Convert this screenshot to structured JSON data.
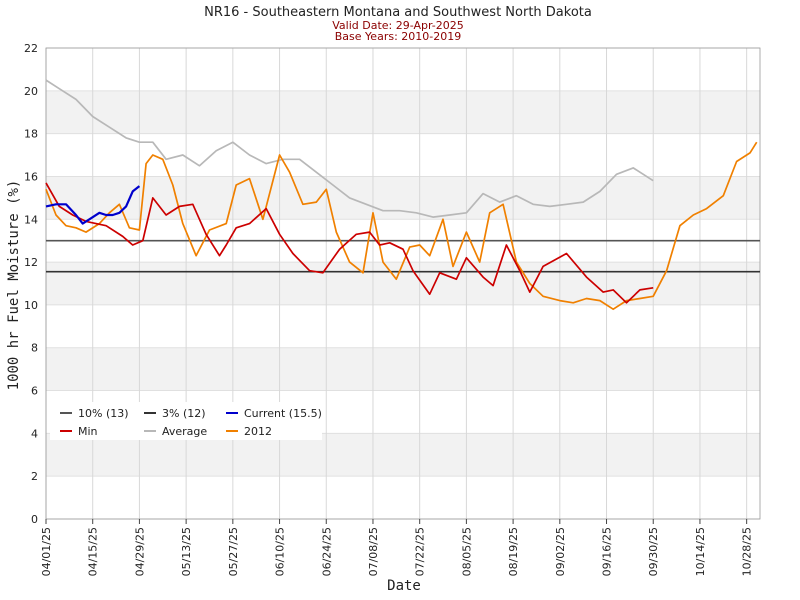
{
  "chart_data": {
    "type": "line",
    "title": "NR16 - Southeastern Montana and Southwest North Dakota",
    "subtitle_lines": [
      "Valid Date: 29-Apr-2025",
      "Base Years: 2010-2019"
    ],
    "xlabel": "Date",
    "ylabel": "1000 hr Fuel Moisture (%)",
    "x_start": "2025-04-01",
    "x_end": "2025-11-01",
    "ylim": [
      0,
      22
    ],
    "yticks": [
      0,
      2,
      4,
      6,
      8,
      10,
      12,
      14,
      16,
      18,
      20,
      22
    ],
    "xticks": [
      "04/01/25",
      "04/15/25",
      "04/29/25",
      "05/13/25",
      "05/27/25",
      "06/10/25",
      "06/24/25",
      "07/08/25",
      "07/22/25",
      "08/05/25",
      "08/19/25",
      "09/02/25",
      "09/16/25",
      "09/30/25",
      "10/14/25",
      "10/28/25"
    ],
    "grid": true,
    "legend_position": "bottom-left",
    "thresholds": [
      {
        "name": "10% (13)",
        "value": 13,
        "color": "#555555"
      },
      {
        "name": "3% (12)",
        "value": 11.55,
        "color": "#333333"
      }
    ],
    "series": [
      {
        "name": "Current (15.5)",
        "color": "#0000cc",
        "x": [
          "2025-04-01",
          "2025-04-04",
          "2025-04-07",
          "2025-04-10",
          "2025-04-12",
          "2025-04-14",
          "2025-04-17",
          "2025-04-19",
          "2025-04-21",
          "2025-04-23",
          "2025-04-25",
          "2025-04-27",
          "2025-04-29"
        ],
        "y": [
          14.6,
          14.7,
          14.7,
          14.2,
          13.8,
          14.0,
          14.3,
          14.2,
          14.2,
          14.3,
          14.6,
          15.3,
          15.55
        ]
      },
      {
        "name": "Min",
        "color": "#cc0000",
        "x": [
          "2025-04-01",
          "2025-04-05",
          "2025-04-09",
          "2025-04-13",
          "2025-04-19",
          "2025-04-24",
          "2025-04-27",
          "2025-04-30",
          "2025-05-03",
          "2025-05-07",
          "2025-05-11",
          "2025-05-15",
          "2025-05-19",
          "2025-05-23",
          "2025-05-25",
          "2025-05-28",
          "2025-06-01",
          "2025-06-06",
          "2025-06-10",
          "2025-06-14",
          "2025-06-19",
          "2025-06-23",
          "2025-06-28",
          "2025-07-03",
          "2025-07-07",
          "2025-07-10",
          "2025-07-13",
          "2025-07-17",
          "2025-07-20",
          "2025-07-25",
          "2025-07-28",
          "2025-08-02",
          "2025-08-05",
          "2025-08-10",
          "2025-08-13",
          "2025-08-17",
          "2025-08-21",
          "2025-08-24",
          "2025-08-28",
          "2025-09-04",
          "2025-09-10",
          "2025-09-15",
          "2025-09-18",
          "2025-09-22",
          "2025-09-26",
          "2025-09-30"
        ],
        "y": [
          15.7,
          14.6,
          14.2,
          13.9,
          13.7,
          13.2,
          12.8,
          13.0,
          15.0,
          14.2,
          14.6,
          14.7,
          13.3,
          12.3,
          12.8,
          13.6,
          13.8,
          14.5,
          13.3,
          12.4,
          11.6,
          11.5,
          12.6,
          13.3,
          13.4,
          12.8,
          12.9,
          12.6,
          11.6,
          10.5,
          11.5,
          11.2,
          12.2,
          11.3,
          10.9,
          12.8,
          11.6,
          10.6,
          11.8,
          12.4,
          11.3,
          10.6,
          10.7,
          10.1,
          10.7,
          10.8
        ]
      },
      {
        "name": "Average",
        "color": "#b8b8b8",
        "x": [
          "2025-04-01",
          "2025-04-05",
          "2025-04-10",
          "2025-04-15",
          "2025-04-20",
          "2025-04-25",
          "2025-04-29",
          "2025-05-03",
          "2025-05-07",
          "2025-05-12",
          "2025-05-17",
          "2025-05-22",
          "2025-05-27",
          "2025-06-01",
          "2025-06-06",
          "2025-06-11",
          "2025-06-16",
          "2025-06-21",
          "2025-06-26",
          "2025-07-01",
          "2025-07-06",
          "2025-07-11",
          "2025-07-16",
          "2025-07-21",
          "2025-07-26",
          "2025-07-31",
          "2025-08-05",
          "2025-08-10",
          "2025-08-15",
          "2025-08-20",
          "2025-08-25",
          "2025-08-30",
          "2025-09-04",
          "2025-09-09",
          "2025-09-14",
          "2025-09-19",
          "2025-09-24",
          "2025-09-30"
        ],
        "y": [
          20.5,
          20.1,
          19.6,
          18.8,
          18.3,
          17.8,
          17.6,
          17.6,
          16.8,
          17.0,
          16.5,
          17.2,
          17.6,
          17.0,
          16.6,
          16.8,
          16.8,
          16.2,
          15.6,
          15.0,
          14.7,
          14.4,
          14.4,
          14.3,
          14.1,
          14.2,
          14.3,
          15.2,
          14.8,
          15.1,
          14.7,
          14.6,
          14.7,
          14.8,
          15.3,
          16.1,
          16.4,
          15.8
        ]
      },
      {
        "name": "2012",
        "color": "#f08000",
        "x": [
          "2025-04-01",
          "2025-04-04",
          "2025-04-07",
          "2025-04-10",
          "2025-04-13",
          "2025-04-17",
          "2025-04-20",
          "2025-04-23",
          "2025-04-26",
          "2025-04-29",
          "2025-05-01",
          "2025-05-03",
          "2025-05-06",
          "2025-05-09",
          "2025-05-12",
          "2025-05-16",
          "2025-05-20",
          "2025-05-25",
          "2025-05-28",
          "2025-06-01",
          "2025-06-05",
          "2025-06-10",
          "2025-06-13",
          "2025-06-17",
          "2025-06-21",
          "2025-06-24",
          "2025-06-27",
          "2025-07-01",
          "2025-07-05",
          "2025-07-08",
          "2025-07-11",
          "2025-07-15",
          "2025-07-19",
          "2025-07-22",
          "2025-07-25",
          "2025-07-29",
          "2025-08-01",
          "2025-08-05",
          "2025-08-09",
          "2025-08-12",
          "2025-08-16",
          "2025-08-20",
          "2025-08-24",
          "2025-08-28",
          "2025-09-02",
          "2025-09-06",
          "2025-09-10",
          "2025-09-14",
          "2025-09-18",
          "2025-09-22",
          "2025-09-26",
          "2025-09-30",
          "2025-10-04",
          "2025-10-08",
          "2025-10-12",
          "2025-10-16",
          "2025-10-21",
          "2025-10-25",
          "2025-10-29",
          "2025-10-31"
        ],
        "y": [
          15.4,
          14.2,
          13.7,
          13.6,
          13.4,
          13.8,
          14.3,
          14.7,
          13.6,
          13.5,
          16.6,
          17.0,
          16.8,
          15.6,
          13.8,
          12.3,
          13.5,
          13.8,
          15.6,
          15.9,
          14.0,
          17.0,
          16.2,
          14.7,
          14.8,
          15.4,
          13.4,
          12.0,
          11.5,
          14.3,
          12.0,
          11.2,
          12.7,
          12.8,
          12.3,
          14.0,
          11.8,
          13.4,
          12.0,
          14.3,
          14.7,
          12.0,
          11.0,
          10.4,
          10.2,
          10.1,
          10.3,
          10.2,
          9.8,
          10.2,
          10.3,
          10.4,
          11.6,
          13.7,
          14.2,
          14.5,
          15.1,
          16.7,
          17.1,
          17.6
        ]
      }
    ],
    "legend": [
      {
        "name": "10% (13)",
        "color": "#555555"
      },
      {
        "name": "3% (12)",
        "color": "#333333"
      },
      {
        "name": "Current (15.5)",
        "color": "#0000cc"
      },
      {
        "name": "Min",
        "color": "#cc0000"
      },
      {
        "name": "Average",
        "color": "#b8b8b8"
      },
      {
        "name": "2012",
        "color": "#f08000"
      }
    ]
  }
}
